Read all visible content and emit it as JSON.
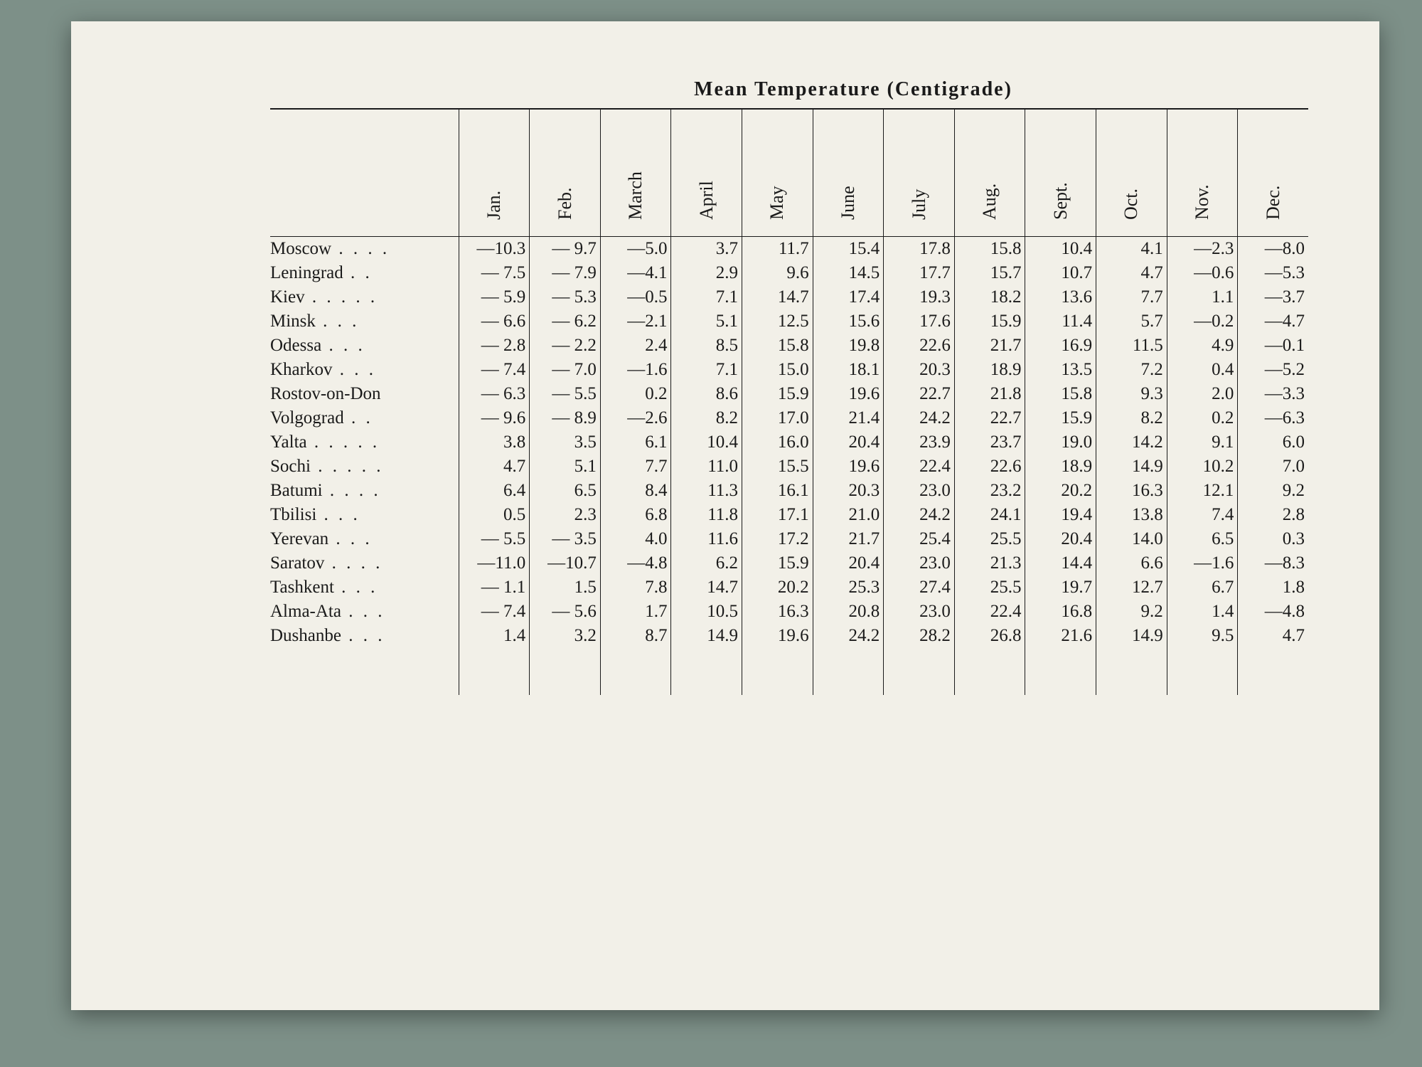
{
  "title": "Mean  Temperature   (Centigrade)",
  "months": [
    "Jan.",
    "Feb.",
    "March",
    "April",
    "May",
    "June",
    "July",
    "Aug.",
    "Sept.",
    "Oct.",
    "Nov.",
    "Dec."
  ],
  "table": {
    "text_color": "#1a1a1a",
    "background_color": "#f2f0e8",
    "font_size": 25,
    "title_font_size": 28,
    "border_color": "#1a1a1a"
  },
  "cities": [
    {
      "name": "Moscow",
      "dots": " .   .   .   .",
      "vals": [
        "—10.3",
        "— 9.7",
        "—5.0",
        "3.7",
        "11.7",
        "15.4",
        "17.8",
        "15.8",
        "10.4",
        "4.1",
        "—2.3",
        "—8.0"
      ]
    },
    {
      "name": "Leningrad",
      "dots": "   .   .",
      "vals": [
        "— 7.5",
        "— 7.9",
        "—4.1",
        "2.9",
        "9.6",
        "14.5",
        "17.7",
        "15.7",
        "10.7",
        "4.7",
        "—0.6",
        "—5.3"
      ]
    },
    {
      "name": "Kiev",
      "dots": " .   .   .   .   .",
      "vals": [
        "— 5.9",
        "— 5.3",
        "—0.5",
        "7.1",
        "14.7",
        "17.4",
        "19.3",
        "18.2",
        "13.6",
        "7.7",
        "1.1",
        "—3.7"
      ]
    },
    {
      "name": "Minsk",
      "dots": "   .   .   .",
      "vals": [
        "— 6.6",
        "— 6.2",
        "—2.1",
        "5.1",
        "12.5",
        "15.6",
        "17.6",
        "15.9",
        "11.4",
        "5.7",
        "—0.2",
        "—4.7"
      ]
    },
    {
      "name": "Odessa",
      "dots": "  .   .   .",
      "vals": [
        "— 2.8",
        "— 2.2",
        "2.4",
        "8.5",
        "15.8",
        "19.8",
        "22.6",
        "21.7",
        "16.9",
        "11.5",
        "4.9",
        "—0.1"
      ]
    },
    {
      "name": "Kharkov",
      "dots": "  .   .   .",
      "vals": [
        "— 7.4",
        "— 7.0",
        "—1.6",
        "7.1",
        "15.0",
        "18.1",
        "20.3",
        "18.9",
        "13.5",
        "7.2",
        "0.4",
        "—5.2"
      ]
    },
    {
      "name": "Rostov-on-Don",
      "dots": "",
      "vals": [
        "— 6.3",
        "— 5.5",
        "0.2",
        "8.6",
        "15.9",
        "19.6",
        "22.7",
        "21.8",
        "15.8",
        "9.3",
        "2.0",
        "—3.3"
      ]
    },
    {
      "name": "Volgograd",
      "dots": "   .   .",
      "vals": [
        "— 9.6",
        "— 8.9",
        "—2.6",
        "8.2",
        "17.0",
        "21.4",
        "24.2",
        "22.7",
        "15.9",
        "8.2",
        "0.2",
        "—6.3"
      ]
    },
    {
      "name": "Yalta",
      "dots": " .   .   .   .   .",
      "vals": [
        "3.8",
        "3.5",
        "6.1",
        "10.4",
        "16.0",
        "20.4",
        "23.9",
        "23.7",
        "19.0",
        "14.2",
        "9.1",
        "6.0"
      ]
    },
    {
      "name": "Sochi",
      "dots": " .   .   .   .   .",
      "vals": [
        "4.7",
        "5.1",
        "7.7",
        "11.0",
        "15.5",
        "19.6",
        "22.4",
        "22.6",
        "18.9",
        "14.9",
        "10.2",
        "7.0"
      ]
    },
    {
      "name": "Batumi",
      "dots": " .   .   .   .",
      "vals": [
        "6.4",
        "6.5",
        "8.4",
        "11.3",
        "16.1",
        "20.3",
        "23.0",
        "23.2",
        "20.2",
        "16.3",
        "12.1",
        "9.2"
      ]
    },
    {
      "name": "Tbilisi",
      "dots": "  .   .   .",
      "vals": [
        "0.5",
        "2.3",
        "6.8",
        "11.8",
        "17.1",
        "21.0",
        "24.2",
        "24.1",
        "19.4",
        "13.8",
        "7.4",
        "2.8"
      ]
    },
    {
      "name": "Yerevan",
      "dots": "    .   .   .",
      "vals": [
        "— 5.5",
        "— 3.5",
        "4.0",
        "11.6",
        "17.2",
        "21.7",
        "25.4",
        "25.5",
        "20.4",
        "14.0",
        "6.5",
        "0.3"
      ]
    },
    {
      "name": "Saratov",
      "dots": " .   .   .   .",
      "vals": [
        "—11.0",
        "—10.7",
        "—4.8",
        "6.2",
        "15.9",
        "20.4",
        "23.0",
        "21.3",
        "14.4",
        "6.6",
        "—1.6",
        "—8.3"
      ]
    },
    {
      "name": "Tashkent",
      "dots": "   .   .   .",
      "vals": [
        "— 1.1",
        "1.5",
        "7.8",
        "14.7",
        "20.2",
        "25.3",
        "27.4",
        "25.5",
        "19.7",
        "12.7",
        "6.7",
        "1.8"
      ]
    },
    {
      "name": "Alma-Ata",
      "dots": " .   .   .",
      "vals": [
        "— 7.4",
        "— 5.6",
        "1.7",
        "10.5",
        "16.3",
        "20.8",
        "23.0",
        "22.4",
        "16.8",
        "9.2",
        "1.4",
        "—4.8"
      ]
    },
    {
      "name": "Dushanbe",
      "dots": " .   .   .",
      "vals": [
        "1.4",
        "3.2",
        "8.7",
        "14.9",
        "19.6",
        "24.2",
        "28.2",
        "26.8",
        "21.6",
        "14.9",
        "9.5",
        "4.7"
      ]
    }
  ]
}
